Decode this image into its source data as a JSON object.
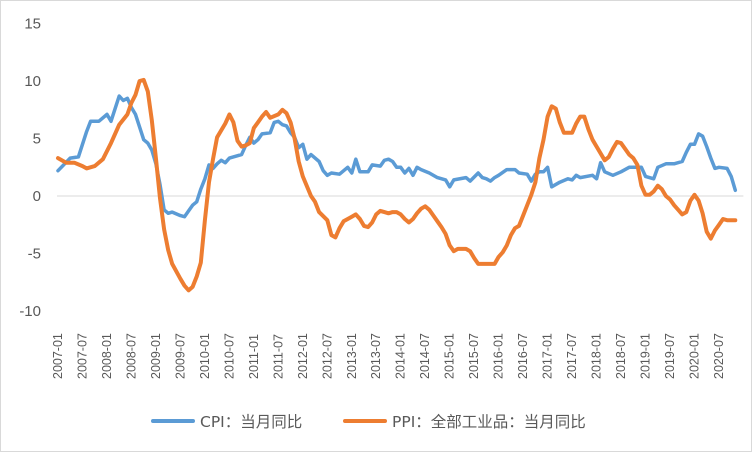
{
  "chart_data": {
    "type": "line",
    "title": "",
    "xlabel": "",
    "ylabel": "",
    "ylim": [
      -10,
      15
    ],
    "yticks": [
      15,
      10,
      5,
      0,
      -5,
      -10
    ],
    "grid": false,
    "legend_position": "bottom",
    "x_tick_labels": [
      "2007-01",
      "2007-07",
      "2008-01",
      "2008-07",
      "2009-01",
      "2009-07",
      "2010-01",
      "2010-07",
      "2011-01",
      "2011-07",
      "2012-01",
      "2012-07",
      "2013-01",
      "2013-07",
      "2014-01",
      "2014-07",
      "2015-01",
      "2015-07",
      "2016-01",
      "2016-07",
      "2017-01",
      "2017-07",
      "2018-01",
      "2018-07",
      "2019-01",
      "2019-07",
      "2020-01",
      "2020-07"
    ],
    "x_start": "2007-01",
    "x_end": "2020-12",
    "series": [
      {
        "name": "CPI：当月同比",
        "color": "#5B9BD5",
        "keypoints": [
          [
            0,
            2.2
          ],
          [
            3,
            3.3
          ],
          [
            5,
            3.4
          ],
          [
            7,
            5.6
          ],
          [
            8,
            6.5
          ],
          [
            10,
            6.5
          ],
          [
            12,
            7.1
          ],
          [
            13,
            6.5
          ],
          [
            15,
            8.7
          ],
          [
            16,
            8.3
          ],
          [
            17,
            8.5
          ],
          [
            18,
            7.7
          ],
          [
            19,
            7.1
          ],
          [
            21,
            4.9
          ],
          [
            22,
            4.6
          ],
          [
            23,
            4.0
          ],
          [
            24,
            2.8
          ],
          [
            25,
            1.0
          ],
          [
            26,
            -1.2
          ],
          [
            27,
            -1.5
          ],
          [
            28,
            -1.4
          ],
          [
            30,
            -1.7
          ],
          [
            31,
            -1.8
          ],
          [
            32,
            -1.3
          ],
          [
            33,
            -0.8
          ],
          [
            34,
            -0.5
          ],
          [
            35,
            0.6
          ],
          [
            36,
            1.5
          ],
          [
            37,
            2.7
          ],
          [
            38,
            2.4
          ],
          [
            39,
            2.8
          ],
          [
            40,
            3.1
          ],
          [
            41,
            2.9
          ],
          [
            42,
            3.3
          ],
          [
            45,
            3.6
          ],
          [
            46,
            4.4
          ],
          [
            47,
            5.1
          ],
          [
            48,
            4.6
          ],
          [
            49,
            4.9
          ],
          [
            50,
            5.4
          ],
          [
            52,
            5.5
          ],
          [
            53,
            6.4
          ],
          [
            54,
            6.5
          ],
          [
            55,
            6.2
          ],
          [
            56,
            6.1
          ],
          [
            57,
            5.5
          ],
          [
            58,
            5.1
          ],
          [
            59,
            4.2
          ],
          [
            60,
            4.5
          ],
          [
            61,
            3.2
          ],
          [
            62,
            3.6
          ],
          [
            64,
            3.0
          ],
          [
            65,
            2.2
          ],
          [
            66,
            1.8
          ],
          [
            67,
            2.0
          ],
          [
            69,
            1.9
          ],
          [
            71,
            2.5
          ],
          [
            72,
            2.0
          ],
          [
            73,
            3.2
          ],
          [
            74,
            2.1
          ],
          [
            76,
            2.1
          ],
          [
            77,
            2.7
          ],
          [
            79,
            2.6
          ],
          [
            80,
            3.1
          ],
          [
            81,
            3.2
          ],
          [
            82,
            3.0
          ],
          [
            83,
            2.5
          ],
          [
            84,
            2.5
          ],
          [
            85,
            2.0
          ],
          [
            86,
            2.4
          ],
          [
            87,
            1.8
          ],
          [
            88,
            2.5
          ],
          [
            89,
            2.3
          ],
          [
            91,
            2.0
          ],
          [
            93,
            1.6
          ],
          [
            95,
            1.4
          ],
          [
            96,
            0.8
          ],
          [
            97,
            1.4
          ],
          [
            100,
            1.6
          ],
          [
            101,
            1.3
          ],
          [
            103,
            2.0
          ],
          [
            104,
            1.6
          ],
          [
            105,
            1.5
          ],
          [
            106,
            1.3
          ],
          [
            107,
            1.6
          ],
          [
            108,
            1.8
          ],
          [
            110,
            2.3
          ],
          [
            112,
            2.3
          ],
          [
            113,
            2.0
          ],
          [
            115,
            1.9
          ],
          [
            116,
            1.3
          ],
          [
            117,
            1.9
          ],
          [
            118,
            2.1
          ],
          [
            119,
            2.1
          ],
          [
            120,
            2.5
          ],
          [
            121,
            0.8
          ],
          [
            123,
            1.2
          ],
          [
            125,
            1.5
          ],
          [
            126,
            1.4
          ],
          [
            127,
            1.8
          ],
          [
            128,
            1.6
          ],
          [
            131,
            1.8
          ],
          [
            132,
            1.5
          ],
          [
            133,
            2.9
          ],
          [
            134,
            2.1
          ],
          [
            136,
            1.8
          ],
          [
            138,
            2.1
          ],
          [
            140,
            2.5
          ],
          [
            141,
            2.5
          ],
          [
            143,
            2.5
          ],
          [
            144,
            1.7
          ],
          [
            146,
            1.5
          ],
          [
            147,
            2.5
          ],
          [
            149,
            2.8
          ],
          [
            151,
            2.8
          ],
          [
            153,
            3.0
          ],
          [
            154,
            3.8
          ],
          [
            155,
            4.5
          ],
          [
            156,
            4.5
          ],
          [
            157,
            5.4
          ],
          [
            158,
            5.2
          ],
          [
            159,
            4.3
          ],
          [
            160,
            3.3
          ],
          [
            161,
            2.4
          ],
          [
            162,
            2.5
          ],
          [
            164,
            2.4
          ],
          [
            165,
            1.7
          ],
          [
            166,
            0.5
          ]
        ]
      },
      {
        "name": "PPI：全部工业品：当月同比",
        "color": "#ED7D31",
        "keypoints": [
          [
            0,
            3.3
          ],
          [
            2,
            2.9
          ],
          [
            4,
            2.9
          ],
          [
            6,
            2.6
          ],
          [
            7,
            2.4
          ],
          [
            9,
            2.6
          ],
          [
            11,
            3.2
          ],
          [
            13,
            4.6
          ],
          [
            15,
            6.2
          ],
          [
            17,
            7.1
          ],
          [
            18,
            8.1
          ],
          [
            19,
            8.8
          ],
          [
            20,
            10.0
          ],
          [
            21,
            10.1
          ],
          [
            22,
            9.1
          ],
          [
            23,
            6.6
          ],
          [
            24,
            3.3
          ],
          [
            25,
            -0.2
          ],
          [
            26,
            -2.9
          ],
          [
            27,
            -4.7
          ],
          [
            28,
            -5.9
          ],
          [
            30,
            -7.2
          ],
          [
            31,
            -7.8
          ],
          [
            32,
            -8.2
          ],
          [
            33,
            -7.9
          ],
          [
            34,
            -7.0
          ],
          [
            35,
            -5.8
          ],
          [
            36,
            -2.1
          ],
          [
            37,
            1.2
          ],
          [
            38,
            3.2
          ],
          [
            39,
            5.1
          ],
          [
            41,
            6.3
          ],
          [
            42,
            7.1
          ],
          [
            43,
            6.4
          ],
          [
            44,
            4.8
          ],
          [
            45,
            4.3
          ],
          [
            46,
            4.4
          ],
          [
            47,
            4.6
          ],
          [
            48,
            5.9
          ],
          [
            49,
            6.4
          ],
          [
            50,
            6.9
          ],
          [
            51,
            7.3
          ],
          [
            52,
            6.8
          ],
          [
            54,
            7.1
          ],
          [
            55,
            7.5
          ],
          [
            56,
            7.2
          ],
          [
            57,
            6.4
          ],
          [
            58,
            5.0
          ],
          [
            59,
            3.0
          ],
          [
            60,
            1.7
          ],
          [
            62,
            0.0
          ],
          [
            63,
            -0.5
          ],
          [
            64,
            -1.4
          ],
          [
            66,
            -2.1
          ],
          [
            67,
            -3.4
          ],
          [
            68,
            -3.6
          ],
          [
            69,
            -2.8
          ],
          [
            70,
            -2.2
          ],
          [
            72,
            -1.8
          ],
          [
            73,
            -1.6
          ],
          [
            74,
            -2.0
          ],
          [
            75,
            -2.6
          ],
          [
            76,
            -2.7
          ],
          [
            77,
            -2.3
          ],
          [
            78,
            -1.6
          ],
          [
            79,
            -1.3
          ],
          [
            80,
            -1.4
          ],
          [
            81,
            -1.5
          ],
          [
            82,
            -1.4
          ],
          [
            83,
            -1.4
          ],
          [
            84,
            -1.6
          ],
          [
            85,
            -2.0
          ],
          [
            86,
            -2.3
          ],
          [
            87,
            -2.0
          ],
          [
            88,
            -1.5
          ],
          [
            89,
            -1.1
          ],
          [
            90,
            -0.9
          ],
          [
            91,
            -1.2
          ],
          [
            92,
            -1.7
          ],
          [
            93,
            -2.2
          ],
          [
            94,
            -2.7
          ],
          [
            95,
            -3.3
          ],
          [
            96,
            -4.3
          ],
          [
            97,
            -4.8
          ],
          [
            98,
            -4.6
          ],
          [
            99,
            -4.6
          ],
          [
            100,
            -4.6
          ],
          [
            101,
            -4.8
          ],
          [
            102,
            -5.4
          ],
          [
            103,
            -5.9
          ],
          [
            104,
            -5.9
          ],
          [
            105,
            -5.9
          ],
          [
            106,
            -5.9
          ],
          [
            107,
            -5.9
          ],
          [
            108,
            -5.3
          ],
          [
            109,
            -4.9
          ],
          [
            110,
            -4.3
          ],
          [
            111,
            -3.4
          ],
          [
            112,
            -2.8
          ],
          [
            113,
            -2.6
          ],
          [
            114,
            -1.7
          ],
          [
            115,
            -0.8
          ],
          [
            116,
            0.1
          ],
          [
            117,
            1.2
          ],
          [
            118,
            3.3
          ],
          [
            119,
            4.9
          ],
          [
            120,
            6.9
          ],
          [
            121,
            7.8
          ],
          [
            122,
            7.6
          ],
          [
            123,
            6.4
          ],
          [
            124,
            5.5
          ],
          [
            126,
            5.5
          ],
          [
            127,
            6.3
          ],
          [
            128,
            6.9
          ],
          [
            129,
            6.9
          ],
          [
            130,
            5.8
          ],
          [
            131,
            4.9
          ],
          [
            132,
            4.3
          ],
          [
            133,
            3.7
          ],
          [
            134,
            3.1
          ],
          [
            135,
            3.4
          ],
          [
            136,
            4.1
          ],
          [
            137,
            4.7
          ],
          [
            138,
            4.6
          ],
          [
            139,
            4.1
          ],
          [
            140,
            3.6
          ],
          [
            141,
            3.3
          ],
          [
            142,
            2.7
          ],
          [
            143,
            0.9
          ],
          [
            144,
            0.1
          ],
          [
            145,
            0.1
          ],
          [
            146,
            0.4
          ],
          [
            147,
            0.9
          ],
          [
            148,
            0.6
          ],
          [
            149,
            0.0
          ],
          [
            150,
            -0.3
          ],
          [
            151,
            -0.8
          ],
          [
            152,
            -1.2
          ],
          [
            153,
            -1.6
          ],
          [
            154,
            -1.4
          ],
          [
            155,
            -0.4
          ],
          [
            156,
            0.1
          ],
          [
            157,
            -0.4
          ],
          [
            158,
            -1.5
          ],
          [
            159,
            -3.1
          ],
          [
            160,
            -3.7
          ],
          [
            161,
            -3.0
          ],
          [
            162,
            -2.5
          ],
          [
            163,
            -2.0
          ],
          [
            164,
            -2.1
          ],
          [
            165,
            -2.1
          ],
          [
            166,
            -2.1
          ]
        ]
      }
    ]
  }
}
